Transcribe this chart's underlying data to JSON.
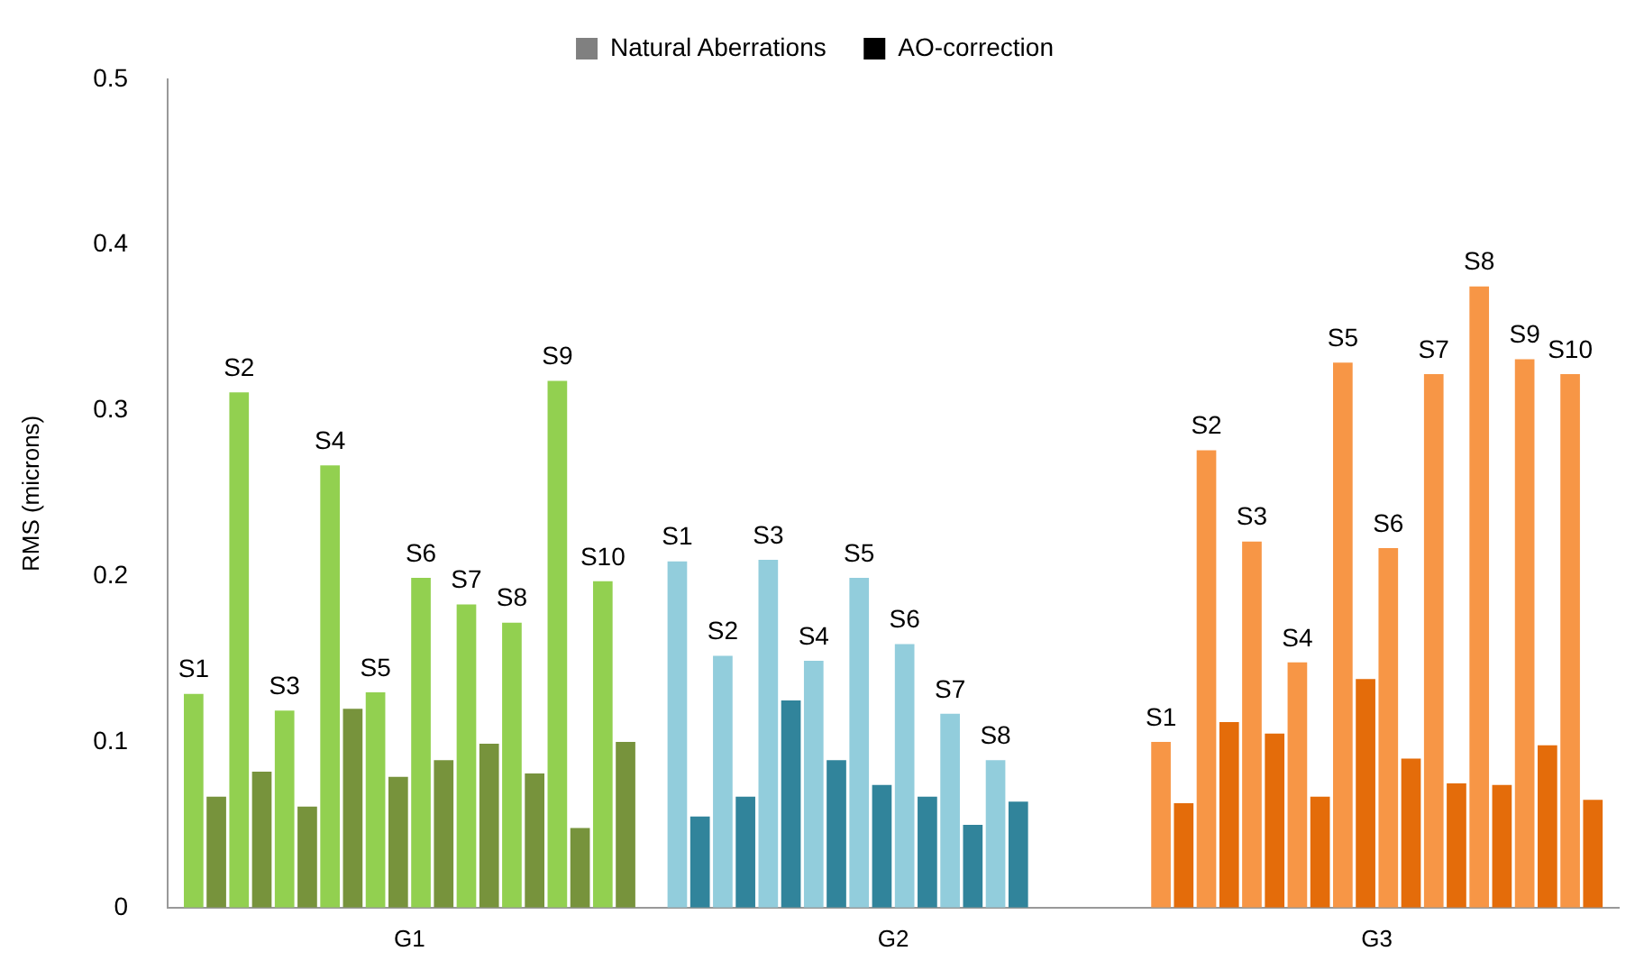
{
  "chart_data": {
    "type": "bar",
    "ylabel": "RMS (microns)",
    "categories": [
      "G1",
      "G2",
      "G3"
    ],
    "ylim": [
      0,
      0.5
    ],
    "yticks": [
      0,
      0.1,
      0.2,
      0.3,
      0.4,
      0.5
    ],
    "grid": false,
    "legend": "top",
    "series": [
      {
        "name": "Natural Aberrations",
        "color": "#808080",
        "values": [
          null,
          null,
          null
        ]
      },
      {
        "name": "AO-correction",
        "color": "#000000",
        "values": [
          null,
          null,
          null
        ]
      },
      {
        "name": "S1",
        "colors": [
          "#92d050",
          "#92cddc",
          "#f79646"
        ],
        "values": [
          0.129,
          0.209,
          0.1
        ]
      },
      {
        "colors": [
          "#77933c",
          "#31849b",
          "#e46c0a"
        ],
        "values": [
          0.067,
          0.055,
          0.063
        ]
      },
      {
        "name": "S2",
        "colors": [
          "#92d050",
          "#92cddc",
          "#f79646"
        ],
        "values": [
          0.311,
          0.152,
          0.276
        ]
      },
      {
        "colors": [
          "#77933c",
          "#31849b",
          "#e46c0a"
        ],
        "values": [
          0.082,
          0.067,
          0.112
        ]
      },
      {
        "name": "S3",
        "colors": [
          "#92d050",
          "#92cddc",
          "#f79646"
        ],
        "values": [
          0.119,
          0.21,
          0.221
        ]
      },
      {
        "colors": [
          "#77933c",
          "#31849b",
          "#e46c0a"
        ],
        "values": [
          0.061,
          0.125,
          0.105
        ]
      },
      {
        "name": "S4",
        "colors": [
          "#92d050",
          "#92cddc",
          "#f79646"
        ],
        "values": [
          0.267,
          0.149,
          0.148
        ]
      },
      {
        "colors": [
          "#77933c",
          "#31849b",
          "#e46c0a"
        ],
        "values": [
          0.12,
          0.089,
          0.067
        ]
      },
      {
        "name": "S5",
        "colors": [
          "#92d050",
          "#92cddc",
          "#f79646"
        ],
        "values": [
          0.13,
          0.199,
          0.329
        ]
      },
      {
        "colors": [
          "#77933c",
          "#31849b",
          "#e46c0a"
        ],
        "values": [
          0.079,
          0.074,
          0.138
        ]
      },
      {
        "name": "S6",
        "colors": [
          "#92d050",
          "#92cddc",
          "#f79646"
        ],
        "values": [
          0.199,
          0.159,
          0.217
        ]
      },
      {
        "colors": [
          "#77933c",
          "#31849b",
          "#e46c0a"
        ],
        "values": [
          0.089,
          0.067,
          0.09
        ]
      },
      {
        "name": "S7",
        "colors": [
          "#92d050",
          "#92cddc",
          "#f79646"
        ],
        "values": [
          0.183,
          0.117,
          0.322
        ]
      },
      {
        "colors": [
          "#77933c",
          "#31849b",
          "#e46c0a"
        ],
        "values": [
          0.099,
          0.05,
          0.075
        ]
      },
      {
        "name": "S8",
        "colors": [
          "#92d050",
          "#92cddc",
          "#f79646"
        ],
        "values": [
          0.172,
          0.089,
          0.375
        ]
      },
      {
        "colors": [
          "#77933c",
          "#31849b",
          "#e46c0a"
        ],
        "values": [
          0.081,
          0.064,
          0.074
        ]
      },
      {
        "name": "S9",
        "colors": [
          "#92d050",
          "#92cddc",
          "#f79646"
        ],
        "values": [
          0.318,
          null,
          0.331
        ]
      },
      {
        "colors": [
          "#77933c",
          "#31849b",
          "#e46c0a"
        ],
        "values": [
          0.048,
          null,
          0.098
        ]
      },
      {
        "name": "S10",
        "colors": [
          "#92d050",
          "#92cddc",
          "#f79646"
        ],
        "values": [
          0.197,
          null,
          0.322
        ]
      },
      {
        "colors": [
          "#77933c",
          "#31849b",
          "#e46c0a"
        ],
        "values": [
          0.1,
          null,
          0.065
        ]
      }
    ]
  }
}
